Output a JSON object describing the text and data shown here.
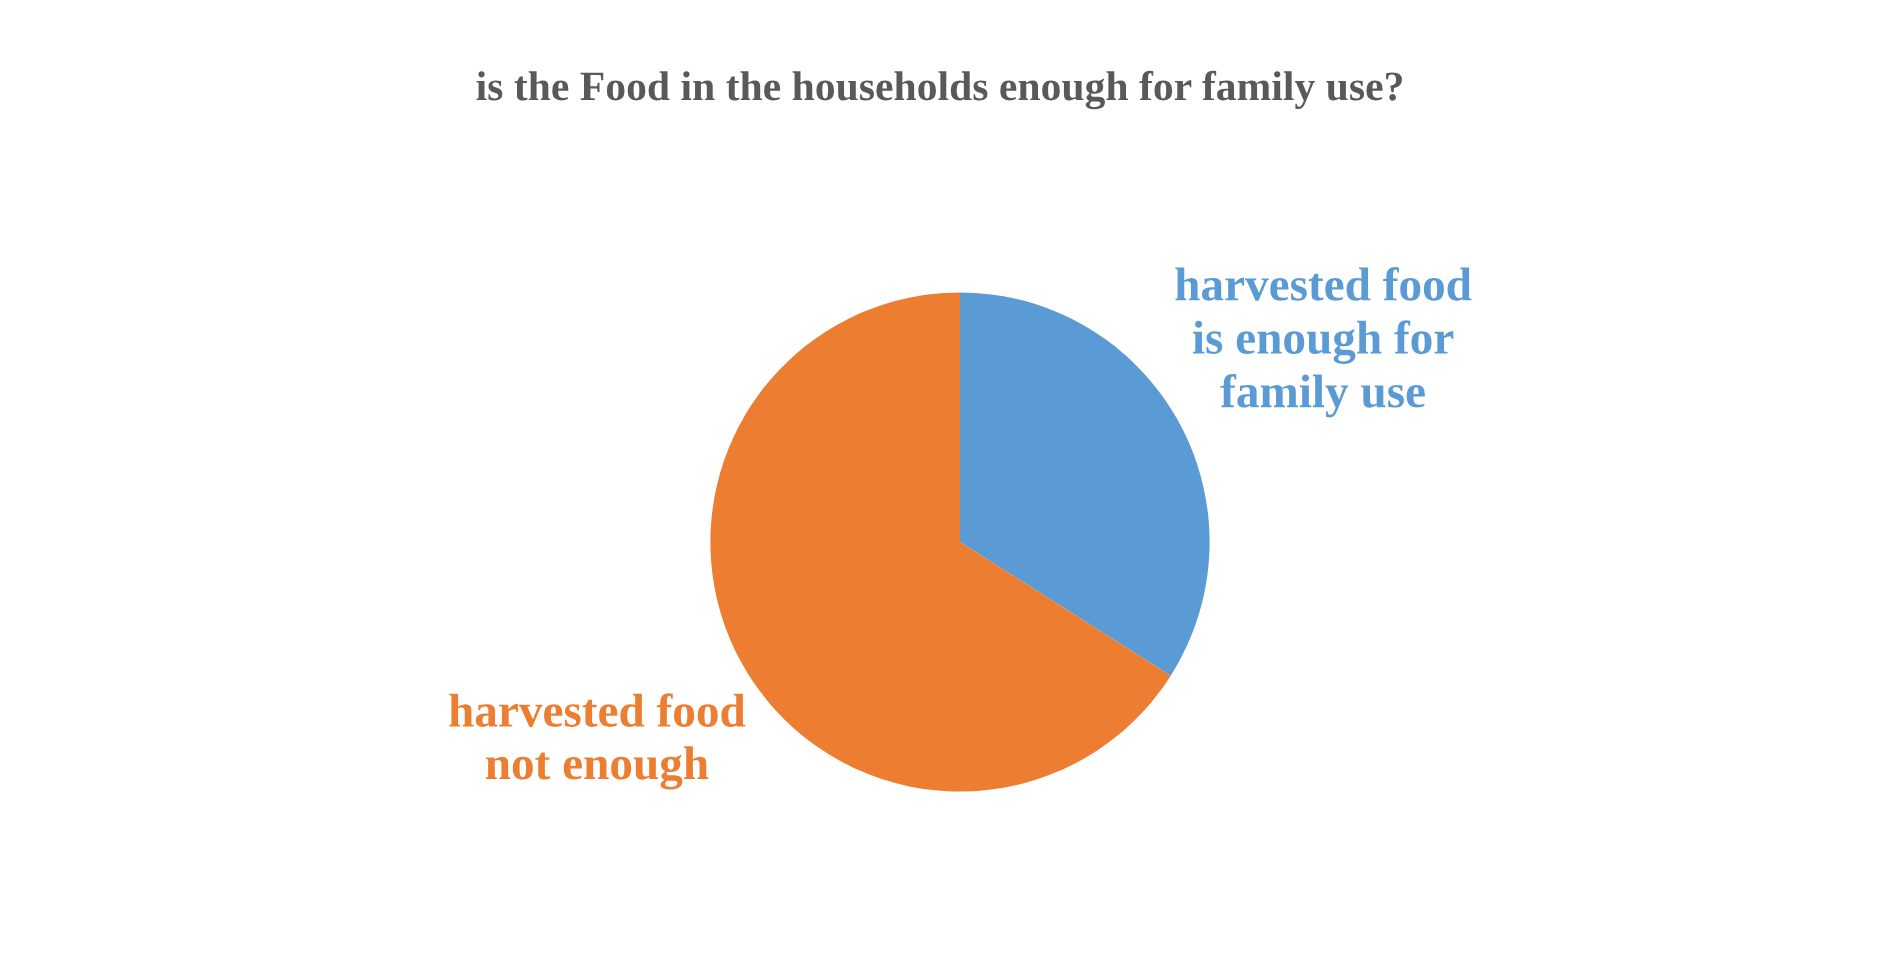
{
  "chart_data": {
    "type": "pie",
    "title": "is the Food in the households enough for family use?",
    "categories": [
      "harvested food\nis enough for\nfamily use",
      "harvested food\nnot enough"
    ],
    "values": [
      34,
      66
    ],
    "colors": [
      "#5b9bd5",
      "#ed7d31"
    ]
  }
}
